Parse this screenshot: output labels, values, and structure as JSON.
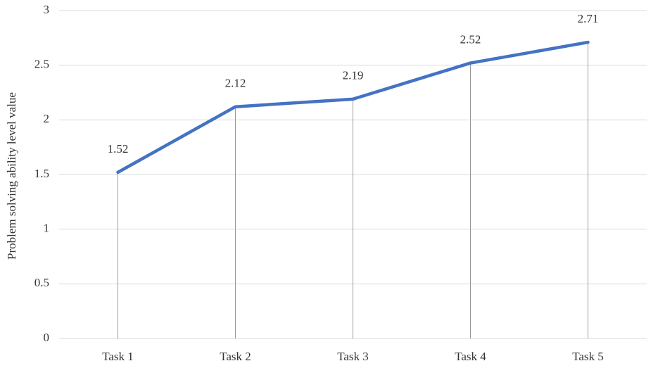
{
  "chart_data": {
    "type": "line",
    "y_label": "Problem solving ability level value",
    "categories": [
      "Task 1",
      "Task 2",
      "Task 3",
      "Task 4",
      "Task 5"
    ],
    "series": [
      {
        "name": "Problem solving ability level value",
        "color": "#4472c4",
        "values": [
          1.52,
          2.12,
          2.19,
          2.52,
          2.71
        ]
      }
    ],
    "ylim": [
      0,
      3
    ],
    "yticks": [
      0,
      0.5,
      1,
      1.5,
      2,
      2.5,
      3
    ],
    "grid": true,
    "drop_lines": true,
    "data_labels": true
  }
}
